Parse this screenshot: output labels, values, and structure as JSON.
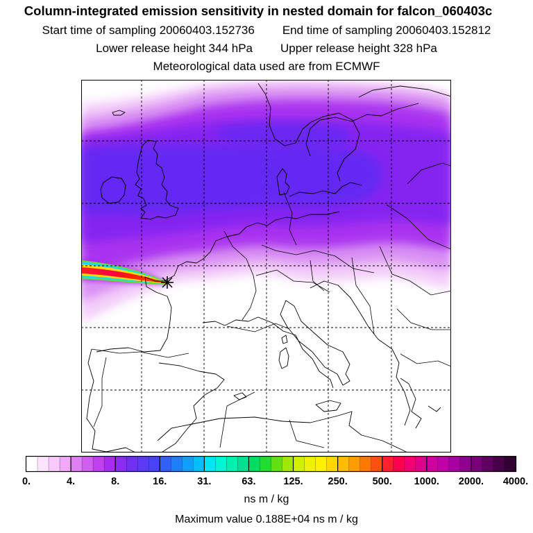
{
  "title": {
    "line1": "Column-integrated emission sensitivity in nested domain for falcon_060403c",
    "start_label": "Start time of sampling 20060403.152736",
    "end_label": "End time of sampling 20060403.152812",
    "lower_label": "Lower release height  344 hPa",
    "upper_label": "Upper release height  328 hPa",
    "meteo_label": "Meteorological data used are from ECMWF"
  },
  "map": {
    "plume_colors": {
      "very_low": "#f2c8f8",
      "low": "#d68af3",
      "mid": "#a52cf0",
      "high": "#7f20f0",
      "peak": "#4a2ef5"
    },
    "release_marker": "star-icon"
  },
  "colorbar": {
    "tick_labels": [
      "0.",
      "4.",
      "8.",
      "16.",
      "31.",
      "63.",
      "125.",
      "250.",
      "500.",
      "1000.",
      "2000.",
      "4000."
    ],
    "colors": [
      "#ffffff",
      "#fde4fd",
      "#f8c9fb",
      "#f0a8f8",
      "#e07ef3",
      "#d25ef1",
      "#c040ef",
      "#a82cee",
      "#8c2cf0",
      "#7030f2",
      "#5a3af5",
      "#4844f6",
      "#3060f8",
      "#1f7ffa",
      "#10a0fb",
      "#00c0fc",
      "#00e5f5",
      "#00f5d5",
      "#00f0b0",
      "#00e090",
      "#00dd60",
      "#20dd30",
      "#60e010",
      "#a0e800",
      "#d0f000",
      "#eef200",
      "#fff000",
      "#ffd800",
      "#ffbc00",
      "#ff9c00",
      "#ff7800",
      "#ff5010",
      "#ff2030",
      "#ff0050",
      "#f00070",
      "#e0008c",
      "#d000a0",
      "#c000a8",
      "#a800a0",
      "#900090",
      "#780078",
      "#600060",
      "#480048",
      "#300030"
    ],
    "units": "ns m / kg"
  },
  "footer": {
    "max_value": "Maximum value  0.188E+04 ns m / kg"
  }
}
